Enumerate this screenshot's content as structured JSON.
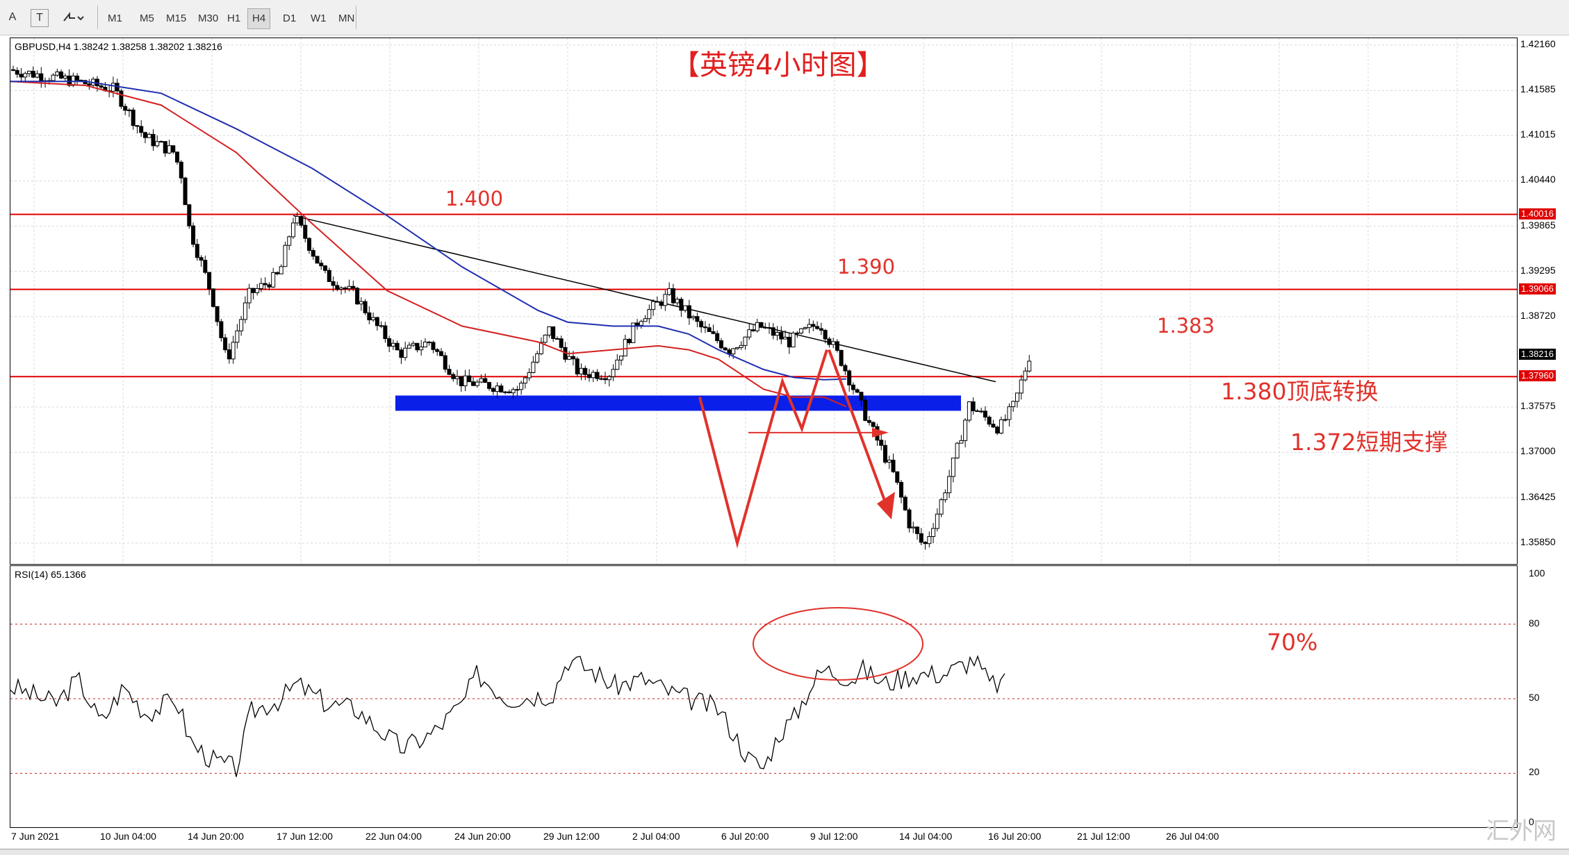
{
  "toolbar": {
    "tool_a": "A",
    "tool_t": "T",
    "timeframes": [
      "M1",
      "M5",
      "M15",
      "M30",
      "H1",
      "H4",
      "D1",
      "W1",
      "MN"
    ],
    "active_timeframe": "H4"
  },
  "chart": {
    "header": "GBPUSD,H4  1.38242 1.38258 1.38202 1.38216",
    "title": "【英镑4小时图】",
    "price_axis": [
      "1.42160",
      "1.41585",
      "1.41015",
      "1.40440",
      "1.39865",
      "1.39295",
      "1.38720",
      "1.37575",
      "1.37000",
      "1.36425",
      "1.35850"
    ],
    "price_boxes": {
      "level_1400": "1.40016",
      "level_1390": "1.39066",
      "current": "1.38216",
      "level_1380": "1.37960"
    },
    "colors": {
      "level_line": "#e00000",
      "ma_fast": "#d42020",
      "ma_slow": "#1f2fb0",
      "trendline": "#000000",
      "support_zone": "#0a1fe8",
      "annotation": "#e0322b"
    },
    "annotations": {
      "a1400": "1.400",
      "a1390": "1.390",
      "a1383": "1.383",
      "a1380": "1.380顶底转换",
      "a1372": "1.372短期支撑"
    }
  },
  "rsi": {
    "header": "RSI(14) 65.1366",
    "axis": [
      "100",
      "80",
      "50",
      "20",
      "0"
    ],
    "annotation": "70%"
  },
  "time_axis": [
    "7 Jun 2021",
    "10 Jun 04:00",
    "14 Jun 20:00",
    "17 Jun 12:00",
    "22 Jun 04:00",
    "24 Jun 20:00",
    "29 Jun 12:00",
    "2 Jul 04:00",
    "6 Jul 20:00",
    "9 Jul 12:00",
    "14 Jul 04:00",
    "16 Jul 20:00",
    "21 Jul 12:00",
    "26 Jul 04:00"
  ],
  "watermark": "汇外网"
}
